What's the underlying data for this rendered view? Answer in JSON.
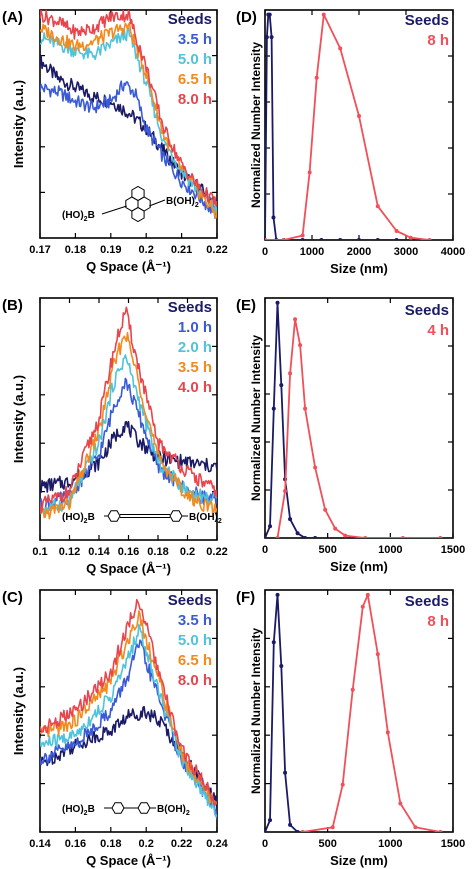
{
  "colors": {
    "seeds": "#1a1a66",
    "c1": "#3b5bd6",
    "c2": "#4fc3dc",
    "c3": "#f28a1e",
    "c4": "#e8454d",
    "dls_red": "#f0505a",
    "axis": "#000000"
  },
  "chart_data": [
    {
      "panel": "A",
      "type": "line",
      "xlabel": "Q Space (Å⁻¹)",
      "ylabel": "Intensity (a.u.)",
      "xlim": [
        0.17,
        0.22
      ],
      "x_ticks": [
        "0.17",
        "0.18",
        "0.19",
        "0.2",
        "0.21",
        "0.22"
      ],
      "y_ticks_labeled": false,
      "legend": [
        "Seeds",
        "3.5 h",
        "5.0 h",
        "6.5 h",
        "8.0 h"
      ],
      "molecule_label": {
        "left": "(HO)",
        "left_sub": "2",
        "mid": "B",
        "right": "B(OH)",
        "right_sub": "2"
      },
      "series": [
        {
          "name": "Seeds",
          "color_key": "seeds",
          "x": [
            0.17,
            0.175,
            0.18,
            0.185,
            0.19,
            0.195,
            0.2,
            0.205,
            0.21,
            0.215,
            0.22
          ],
          "y": [
            0.78,
            0.7,
            0.66,
            0.62,
            0.6,
            0.55,
            0.48,
            0.38,
            0.28,
            0.22,
            0.15
          ]
        },
        {
          "name": "3.5 h",
          "color_key": "c1",
          "x": [
            0.17,
            0.175,
            0.18,
            0.185,
            0.19,
            0.194,
            0.197,
            0.2,
            0.205,
            0.21,
            0.215,
            0.22
          ],
          "y": [
            0.66,
            0.64,
            0.6,
            0.57,
            0.6,
            0.68,
            0.63,
            0.48,
            0.35,
            0.25,
            0.18,
            0.1
          ]
        },
        {
          "name": "5.0 h",
          "color_key": "c2",
          "x": [
            0.17,
            0.175,
            0.18,
            0.185,
            0.19,
            0.195,
            0.2,
            0.205,
            0.21,
            0.215,
            0.22
          ],
          "y": [
            0.88,
            0.85,
            0.82,
            0.8,
            0.85,
            0.9,
            0.68,
            0.42,
            0.3,
            0.2,
            0.12
          ]
        },
        {
          "name": "6.5 h",
          "color_key": "c3",
          "x": [
            0.17,
            0.175,
            0.18,
            0.185,
            0.19,
            0.195,
            0.2,
            0.205,
            0.21,
            0.215,
            0.22
          ],
          "y": [
            0.92,
            0.88,
            0.84,
            0.86,
            0.9,
            0.93,
            0.72,
            0.45,
            0.3,
            0.2,
            0.1
          ]
        },
        {
          "name": "8.0 h",
          "color_key": "c4",
          "x": [
            0.17,
            0.175,
            0.18,
            0.185,
            0.19,
            0.195,
            0.2,
            0.205,
            0.21,
            0.215,
            0.22
          ],
          "y": [
            0.98,
            0.95,
            0.9,
            0.92,
            0.97,
            0.98,
            0.75,
            0.48,
            0.32,
            0.22,
            0.15
          ]
        }
      ]
    },
    {
      "panel": "B",
      "type": "line",
      "xlabel": "Q Space (Å⁻¹)",
      "ylabel": "Intensity (a.u.)",
      "xlim": [
        0.1,
        0.22
      ],
      "x_ticks": [
        "0.1",
        "0.12",
        "0.14",
        "0.16",
        "0.18",
        "0.2",
        "0.22"
      ],
      "y_ticks_labeled": false,
      "legend": [
        "Seeds",
        "1.0 h",
        "2.0 h",
        "3.5 h",
        "4.0 h"
      ],
      "molecule_label": {
        "left": "(HO)",
        "left_sub": "2",
        "mid": "B",
        "right": "B(OH)",
        "right_sub": "2"
      },
      "series": [
        {
          "name": "Seeds",
          "color_key": "seeds",
          "x": [
            0.1,
            0.12,
            0.14,
            0.15,
            0.158,
            0.165,
            0.18,
            0.2,
            0.22
          ],
          "y": [
            0.22,
            0.24,
            0.32,
            0.42,
            0.48,
            0.42,
            0.34,
            0.32,
            0.3
          ]
        },
        {
          "name": "1.0 h",
          "color_key": "c1",
          "x": [
            0.1,
            0.12,
            0.14,
            0.15,
            0.158,
            0.165,
            0.18,
            0.2,
            0.22
          ],
          "y": [
            0.14,
            0.18,
            0.35,
            0.55,
            0.66,
            0.55,
            0.3,
            0.2,
            0.16
          ]
        },
        {
          "name": "2.0 h",
          "color_key": "c2",
          "x": [
            0.1,
            0.12,
            0.14,
            0.15,
            0.158,
            0.165,
            0.18,
            0.2,
            0.22
          ],
          "y": [
            0.12,
            0.16,
            0.4,
            0.65,
            0.76,
            0.62,
            0.32,
            0.2,
            0.16
          ]
        },
        {
          "name": "3.5 h",
          "color_key": "c3",
          "x": [
            0.1,
            0.12,
            0.14,
            0.15,
            0.158,
            0.165,
            0.18,
            0.2,
            0.22
          ],
          "y": [
            0.1,
            0.15,
            0.45,
            0.72,
            0.86,
            0.7,
            0.34,
            0.18,
            0.12
          ]
        },
        {
          "name": "4.0 h",
          "color_key": "c4",
          "x": [
            0.1,
            0.12,
            0.14,
            0.15,
            0.158,
            0.165,
            0.18,
            0.2,
            0.22
          ],
          "y": [
            0.14,
            0.2,
            0.5,
            0.78,
            0.95,
            0.76,
            0.4,
            0.28,
            0.2
          ]
        }
      ]
    },
    {
      "panel": "C",
      "type": "line",
      "xlabel": "Q Space (Å⁻¹)",
      "ylabel": "Intensity (a.u.)",
      "xlim": [
        0.14,
        0.24
      ],
      "x_ticks": [
        "0.14",
        "0.16",
        "0.18",
        "0.2",
        "0.22",
        "0.24"
      ],
      "y_ticks_labeled": false,
      "legend": [
        "Seeds",
        "3.5 h",
        "5.0 h",
        "6.5 h",
        "8.0 h"
      ],
      "molecule_label": {
        "left": "(HO)",
        "left_sub": "2",
        "mid": "B",
        "right": "B(OH)",
        "right_sub": "2"
      },
      "series": [
        {
          "name": "Seeds",
          "color_key": "seeds",
          "x": [
            0.14,
            0.16,
            0.18,
            0.19,
            0.2,
            0.21,
            0.22,
            0.24
          ],
          "y": [
            0.28,
            0.36,
            0.42,
            0.48,
            0.5,
            0.44,
            0.32,
            0.12
          ]
        },
        {
          "name": "3.5 h",
          "color_key": "c1",
          "x": [
            0.14,
            0.16,
            0.18,
            0.19,
            0.196,
            0.2,
            0.21,
            0.22,
            0.24
          ],
          "y": [
            0.3,
            0.36,
            0.5,
            0.65,
            0.78,
            0.7,
            0.5,
            0.3,
            0.08
          ]
        },
        {
          "name": "5.0 h",
          "color_key": "c2",
          "x": [
            0.14,
            0.16,
            0.18,
            0.19,
            0.196,
            0.2,
            0.21,
            0.22,
            0.24
          ],
          "y": [
            0.36,
            0.4,
            0.56,
            0.72,
            0.84,
            0.75,
            0.52,
            0.3,
            0.08
          ]
        },
        {
          "name": "6.5 h",
          "color_key": "c3",
          "x": [
            0.14,
            0.16,
            0.18,
            0.19,
            0.196,
            0.2,
            0.21,
            0.22,
            0.24
          ],
          "y": [
            0.4,
            0.46,
            0.62,
            0.8,
            0.9,
            0.8,
            0.56,
            0.32,
            0.1
          ]
        },
        {
          "name": "8.0 h",
          "color_key": "c4",
          "x": [
            0.14,
            0.16,
            0.18,
            0.19,
            0.196,
            0.2,
            0.21,
            0.22,
            0.24
          ],
          "y": [
            0.42,
            0.5,
            0.66,
            0.86,
            0.96,
            0.85,
            0.58,
            0.34,
            0.12
          ]
        }
      ]
    },
    {
      "panel": "D",
      "type": "line",
      "xlabel": "Size (nm)",
      "ylabel": "Normalized Number Intensity",
      "xlim": [
        0,
        4000
      ],
      "x_ticks": [
        "0",
        "1000",
        "2000",
        "3000",
        "4000"
      ],
      "y_ticks_labeled": false,
      "legend": [
        "Seeds",
        "8 h"
      ],
      "series": [
        {
          "name": "Seeds",
          "color_key": "seeds",
          "x": [
            -40,
            0,
            40,
            70,
            100,
            140,
            180,
            240,
            400,
            800,
            1200,
            1600,
            2000,
            2400,
            2800,
            3200
          ],
          "y": [
            0,
            0,
            0.9,
            1.0,
            1.0,
            0.9,
            0.1,
            0,
            0,
            0,
            0,
            0,
            0,
            0,
            0,
            0
          ]
        },
        {
          "name": "8 h",
          "color_key": "dls_red",
          "x": [
            0,
            400,
            800,
            950,
            1100,
            1250,
            1600,
            2000,
            2400,
            2800,
            3100,
            3500
          ],
          "y": [
            0,
            0,
            0.02,
            0.3,
            0.72,
            1.0,
            0.85,
            0.55,
            0.15,
            0.04,
            0.01,
            0
          ]
        }
      ]
    },
    {
      "panel": "E",
      "type": "line",
      "xlabel": "Size (nm)",
      "ylabel": "Normalized Number Intensity",
      "xlim": [
        0,
        1500
      ],
      "x_ticks": [
        "0",
        "500",
        "1000",
        "1500"
      ],
      "y_ticks_labeled": false,
      "legend": [
        "Seeds",
        "4 h"
      ],
      "series": [
        {
          "name": "Seeds",
          "color_key": "seeds",
          "x": [
            0,
            40,
            70,
            100,
            130,
            160,
            200,
            260,
            320,
            400
          ],
          "y": [
            0,
            0.05,
            0.55,
            1.0,
            0.65,
            0.25,
            0.08,
            0.02,
            0,
            0
          ]
        },
        {
          "name": "4 h",
          "color_key": "dls_red",
          "x": [
            100,
            160,
            200,
            240,
            280,
            320,
            400,
            480,
            560,
            640,
            800,
            1100,
            1400
          ],
          "y": [
            0,
            0.2,
            0.7,
            0.93,
            0.82,
            0.55,
            0.3,
            0.12,
            0.04,
            0.01,
            0,
            0,
            0
          ]
        }
      ]
    },
    {
      "panel": "F",
      "type": "line",
      "xlabel": "Size (nm)",
      "ylabel": "Normalized Number Intensity",
      "xlim": [
        0,
        1500
      ],
      "x_ticks": [
        "0",
        "500",
        "1000",
        "1500"
      ],
      "y_ticks_labeled": false,
      "legend": [
        "Seeds",
        "8 h"
      ],
      "series": [
        {
          "name": "Seeds",
          "color_key": "seeds",
          "x": [
            0,
            40,
            70,
            100,
            130,
            160,
            200,
            260
          ],
          "y": [
            0,
            0.05,
            0.8,
            1.0,
            0.7,
            0.25,
            0.03,
            0
          ]
        },
        {
          "name": "8 h",
          "color_key": "dls_red",
          "x": [
            300,
            540,
            620,
            700,
            780,
            820,
            900,
            980,
            1080,
            1200,
            1400
          ],
          "y": [
            0,
            0.02,
            0.2,
            0.6,
            0.95,
            1.0,
            0.75,
            0.42,
            0.12,
            0.02,
            0
          ]
        }
      ]
    }
  ]
}
